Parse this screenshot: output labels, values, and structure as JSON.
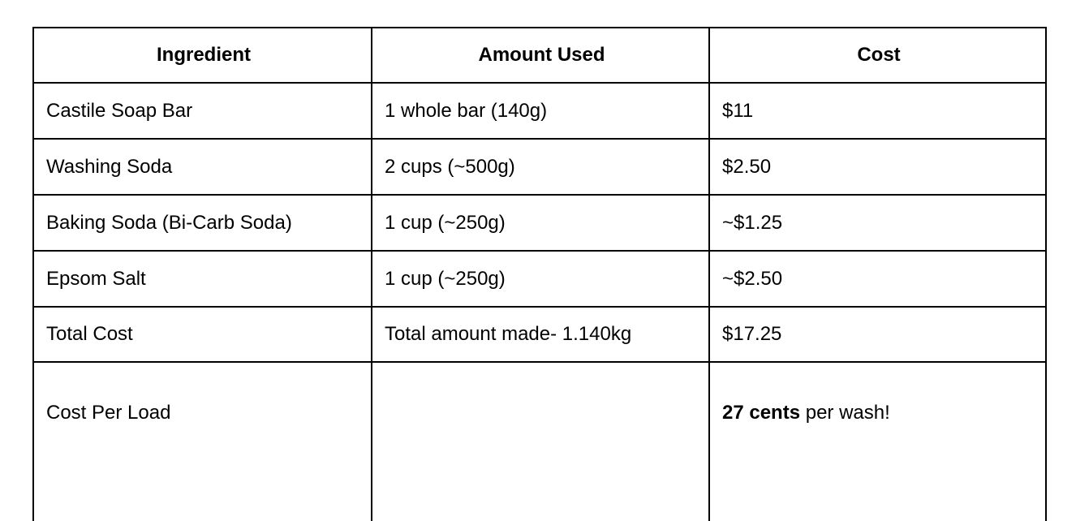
{
  "table": {
    "headers": [
      "Ingredient",
      "Amount Used",
      "Cost"
    ],
    "rows": [
      {
        "ingredient": "Castile Soap Bar",
        "amount": "1 whole bar (140g)",
        "cost": "$11"
      },
      {
        "ingredient": "Washing Soda",
        "amount": "2 cups (~500g)",
        "cost": "$2.50"
      },
      {
        "ingredient": "Baking Soda (Bi-Carb Soda)",
        "amount": "1 cup (~250g)",
        "cost": "~$1.25"
      },
      {
        "ingredient": "Epsom Salt",
        "amount": "1 cup (~250g)",
        "cost": "~$2.50"
      }
    ],
    "total_row": {
      "label": "Total Cost",
      "amount": "Total amount made- 1.140kg",
      "cost": "$17.25"
    },
    "cost_per_load_row": {
      "label": "Cost Per Load",
      "amount": "",
      "cost_bold": "27 cents",
      "cost_rest": " per wash!"
    },
    "border_color": "#000000",
    "background_color": "#ffffff"
  }
}
